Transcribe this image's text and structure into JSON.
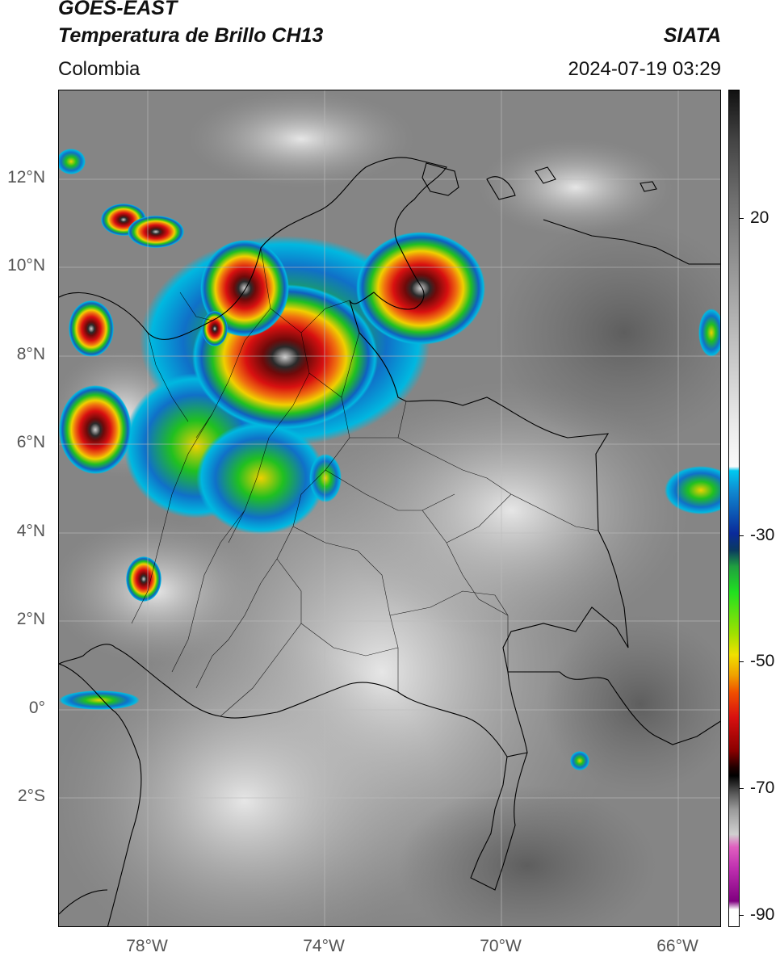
{
  "header": {
    "satellite": "GOES-EAST",
    "product": "Temperatura de Brillo CH13",
    "organization": "SIATA",
    "region": "Colombia",
    "timestamp": "2024-07-19 03:29"
  },
  "axes": {
    "lat_labels": [
      "12°N",
      "10°N",
      "8°N",
      "6°N",
      "4°N",
      "2°N",
      "0°",
      "2°S"
    ],
    "lon_labels": [
      "78°W",
      "74°W",
      "70°W",
      "66°W"
    ]
  },
  "colorbar": {
    "tick_labels": [
      "20",
      "-30",
      "-50",
      "-70",
      "-90"
    ],
    "range": [
      -93,
      45
    ]
  },
  "colors": {
    "cloud_warm": "#7a7a7a",
    "cloud_cold": "#d8d8d8",
    "convective_red": "#c81010",
    "convective_yellow": "#f0d000",
    "convective_green": "#18c018",
    "convective_blue": "#1060c0",
    "border": "#000000"
  }
}
